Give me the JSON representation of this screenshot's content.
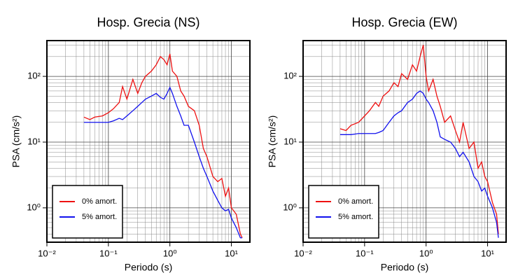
{
  "chart_data": [
    {
      "type": "line",
      "title": "Hosp. Grecia (NS)",
      "xlabel": "Periodo (s)",
      "ylabel": "PSA (cm/s²)",
      "xscale": "log",
      "yscale": "log",
      "grid": true,
      "legend": "lower left",
      "xlim": [
        0.01,
        20
      ],
      "ylim": [
        0.3,
        350
      ],
      "xticks": [
        {
          "value": 0.01,
          "label": "10⁻²"
        },
        {
          "value": 0.1,
          "label": "10⁻¹"
        },
        {
          "value": 1,
          "label": "10⁰"
        },
        {
          "value": 10,
          "label": "10¹"
        }
      ],
      "yticks": [
        {
          "value": 1,
          "label": "10⁰"
        },
        {
          "value": 10,
          "label": "10¹"
        },
        {
          "value": 100,
          "label": "10²"
        }
      ],
      "x_minor_ticks": [
        0.02,
        0.03,
        0.04,
        0.05,
        0.06,
        0.07,
        0.08,
        0.09,
        0.2,
        0.3,
        0.4,
        0.5,
        0.6,
        0.7,
        0.8,
        0.9,
        2,
        3,
        4,
        5,
        6,
        7,
        8,
        9
      ],
      "y_minor_ticks": [
        0.4,
        0.5,
        0.6,
        0.7,
        0.8,
        0.9,
        2,
        3,
        4,
        5,
        6,
        7,
        8,
        9,
        20,
        30,
        40,
        50,
        60,
        70,
        80,
        90,
        200,
        300
      ],
      "x": [
        0.04,
        0.05,
        0.06,
        0.08,
        0.1,
        0.12,
        0.15,
        0.17,
        0.2,
        0.25,
        0.3,
        0.35,
        0.4,
        0.5,
        0.6,
        0.7,
        0.8,
        0.9,
        1.0,
        1.1,
        1.3,
        1.5,
        1.7,
        2,
        2.5,
        3,
        3.5,
        4,
        5,
        6,
        7,
        8,
        9,
        10,
        12,
        14,
        15
      ],
      "series": [
        {
          "name": "0% amort.",
          "color": "#ee1111",
          "values": [
            24,
            22,
            24,
            25,
            28,
            32,
            40,
            70,
            45,
            90,
            55,
            80,
            100,
            120,
            150,
            200,
            180,
            150,
            220,
            120,
            100,
            60,
            50,
            35,
            30,
            18,
            8,
            6,
            3,
            2.5,
            2.8,
            1.5,
            2,
            1.0,
            0.8,
            0.4,
            0.35
          ]
        },
        {
          "name": "5% amort.",
          "color": "#1111ee",
          "values": [
            20,
            20,
            20,
            20,
            20,
            21,
            23,
            22,
            25,
            30,
            35,
            40,
            45,
            50,
            55,
            48,
            45,
            55,
            68,
            55,
            35,
            25,
            18,
            18,
            10,
            6,
            4,
            3,
            1.8,
            1.3,
            1.0,
            0.9,
            0.95,
            0.7,
            0.5,
            0.35,
            0.35
          ]
        }
      ]
    },
    {
      "type": "line",
      "title": "Hosp. Grecia (EW)",
      "xlabel": "Periodo (s)",
      "ylabel": "PSA (cm/s²)",
      "xscale": "log",
      "yscale": "log",
      "grid": true,
      "legend": "lower left",
      "xlim": [
        0.01,
        20
      ],
      "ylim": [
        0.3,
        350
      ],
      "xticks": [
        {
          "value": 0.01,
          "label": "10⁻²"
        },
        {
          "value": 0.1,
          "label": "10⁻¹"
        },
        {
          "value": 1,
          "label": "10⁰"
        },
        {
          "value": 10,
          "label": "10¹"
        }
      ],
      "yticks": [
        {
          "value": 1,
          "label": "10⁰"
        },
        {
          "value": 10,
          "label": "10¹"
        },
        {
          "value": 100,
          "label": "10²"
        }
      ],
      "x_minor_ticks": [
        0.02,
        0.03,
        0.04,
        0.05,
        0.06,
        0.07,
        0.08,
        0.09,
        0.2,
        0.3,
        0.4,
        0.5,
        0.6,
        0.7,
        0.8,
        0.9,
        2,
        3,
        4,
        5,
        6,
        7,
        8,
        9
      ],
      "y_minor_ticks": [
        0.4,
        0.5,
        0.6,
        0.7,
        0.8,
        0.9,
        2,
        3,
        4,
        5,
        6,
        7,
        8,
        9,
        20,
        30,
        40,
        50,
        60,
        70,
        80,
        90,
        200,
        300
      ],
      "x": [
        0.04,
        0.05,
        0.06,
        0.08,
        0.1,
        0.12,
        0.15,
        0.17,
        0.2,
        0.25,
        0.3,
        0.35,
        0.4,
        0.5,
        0.6,
        0.7,
        0.8,
        0.9,
        1.0,
        1.1,
        1.3,
        1.5,
        1.7,
        2,
        2.5,
        3,
        3.5,
        4,
        5,
        6,
        7,
        8,
        9,
        10,
        12,
        14,
        15
      ],
      "series": [
        {
          "name": "0% amort.",
          "color": "#ee1111",
          "values": [
            16,
            15,
            18,
            20,
            25,
            30,
            40,
            35,
            50,
            60,
            80,
            70,
            110,
            90,
            150,
            120,
            200,
            300,
            100,
            60,
            90,
            50,
            35,
            20,
            25,
            15,
            10,
            20,
            8,
            10,
            4,
            5,
            3,
            2.5,
            1.2,
            0.8,
            0.4
          ]
        },
        {
          "name": "5% amort.",
          "color": "#1111ee",
          "values": [
            13,
            13,
            13,
            13.5,
            13.5,
            13.5,
            13.5,
            14,
            15,
            20,
            25,
            28,
            30,
            40,
            45,
            55,
            60,
            55,
            45,
            40,
            30,
            20,
            12,
            11,
            10,
            8,
            6,
            7,
            5,
            3,
            2.5,
            1.8,
            2,
            1.5,
            1.0,
            0.6,
            0.35
          ]
        }
      ]
    }
  ]
}
